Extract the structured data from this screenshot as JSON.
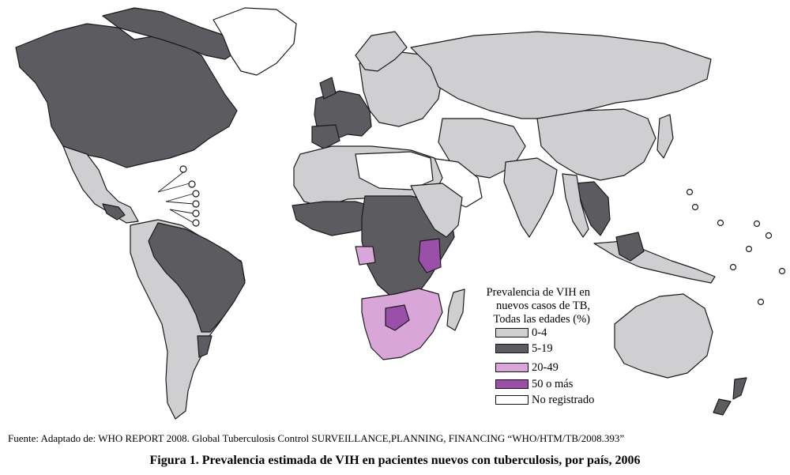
{
  "legend": {
    "title_lines": [
      "Prevalencia de VIH en",
      "nuevos casos de TB,",
      "Todas las edades (%)"
    ],
    "items": [
      {
        "label": "0-4",
        "color": "#cfcfd1"
      },
      {
        "label": "5-19",
        "color": "#5c5c60"
      },
      {
        "label": "20-49",
        "color": "#d9a6d9"
      },
      {
        "label": "50 o más",
        "color": "#9a4fa8"
      },
      {
        "label": "No registrado",
        "color": "#ffffff"
      }
    ]
  },
  "source": "Fuente: Adaptado de: WHO REPORT 2008. Global Tuberculosis Control SURVEILLANCE,PLANNING, FINANCING  “WHO/HTM/TB/2008.393”",
  "caption": "Figura 1. Prevalencia estimada de VIH en pacientes nuevos con tuberculosis, por país, 2006"
}
